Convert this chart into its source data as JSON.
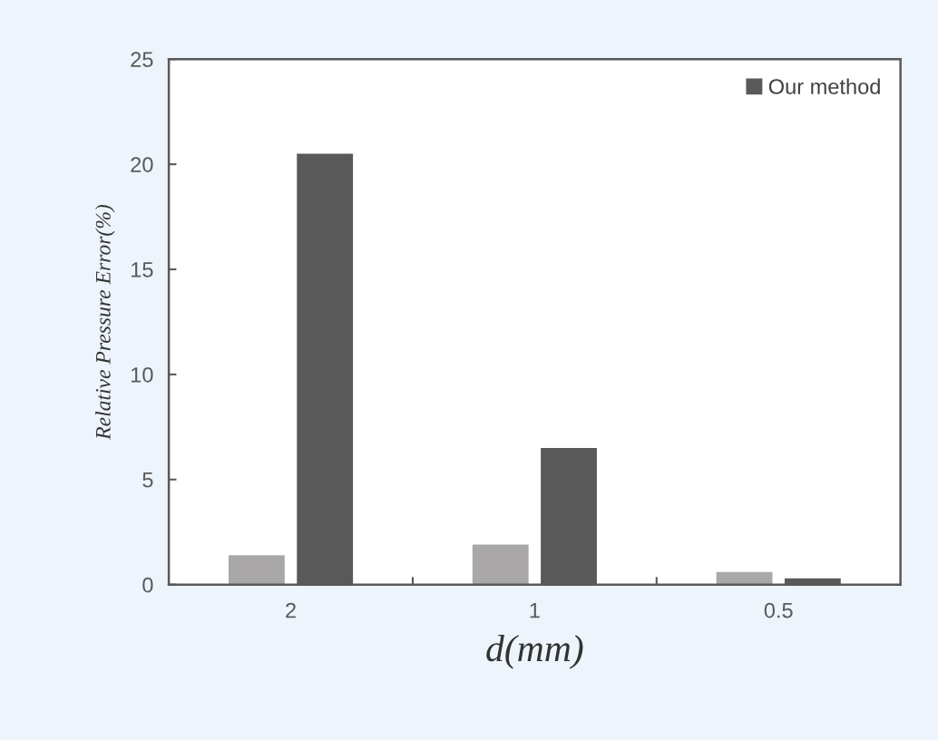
{
  "chart_data": {
    "type": "bar",
    "xlabel": "d(mm)",
    "ylabel": "Relative Pressure Error(%)",
    "categories": [
      "2",
      "1",
      "0.5"
    ],
    "series": [
      {
        "color": "#a9a7a7",
        "values": [
          1.4,
          1.9,
          0.6
        ]
      },
      {
        "name": "Our method",
        "color": "#595959",
        "values": [
          20.5,
          6.5,
          0.3
        ]
      }
    ],
    "ylim": [
      0,
      25
    ],
    "yticks": [
      0,
      5,
      10,
      15,
      20,
      25
    ],
    "grid": false,
    "legend": "top right"
  }
}
